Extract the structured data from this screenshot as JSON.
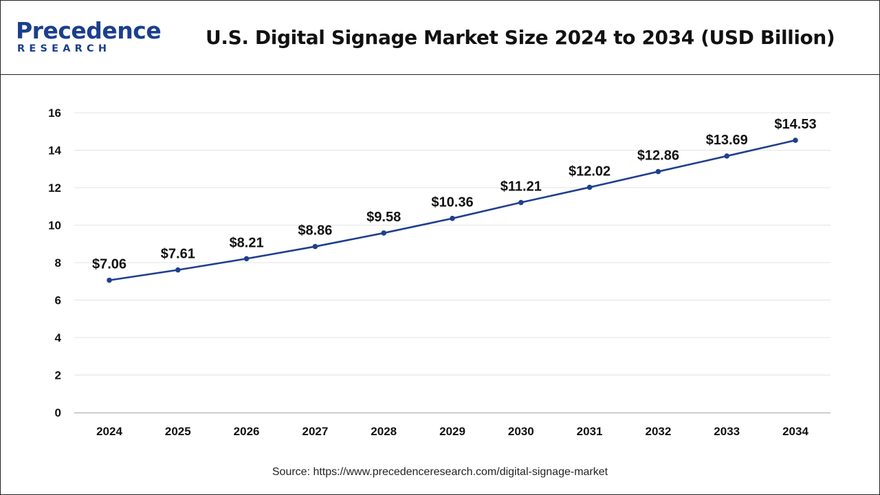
{
  "header": {
    "logo_name": "Precedence",
    "logo_sub": "RESEARCH",
    "title": "U.S. Digital Signage Market Size 2024 to 2034 (USD Billion)"
  },
  "source": "Source: https://www.precedenceresearch.com/digital-signage-market",
  "colors": {
    "line": "#1f3f8f",
    "brand": "#1b3f8c",
    "grid": "#e3e3e3"
  },
  "chart_data": {
    "type": "line",
    "title": "U.S. Digital Signage Market Size 2024 to 2034 (USD Billion)",
    "xlabel": "",
    "ylabel": "",
    "categories": [
      "2024",
      "2025",
      "2026",
      "2027",
      "2028",
      "2029",
      "2030",
      "2031",
      "2032",
      "2033",
      "2034"
    ],
    "series": [
      {
        "name": "Market Size (USD Billion)",
        "values": [
          7.06,
          7.61,
          8.21,
          8.86,
          9.58,
          10.36,
          11.21,
          12.02,
          12.86,
          13.69,
          14.53
        ],
        "labels": [
          "$7.06",
          "$7.61",
          "$8.21",
          "$8.86",
          "$9.58",
          "$10.36",
          "$11.21",
          "$12.02",
          "$12.86",
          "$13.69",
          "$14.53"
        ]
      }
    ],
    "yticks": [
      0,
      2,
      4,
      6,
      8,
      10,
      12,
      14,
      16
    ],
    "ylim": [
      0,
      16
    ],
    "grid": true,
    "legend": "none"
  }
}
